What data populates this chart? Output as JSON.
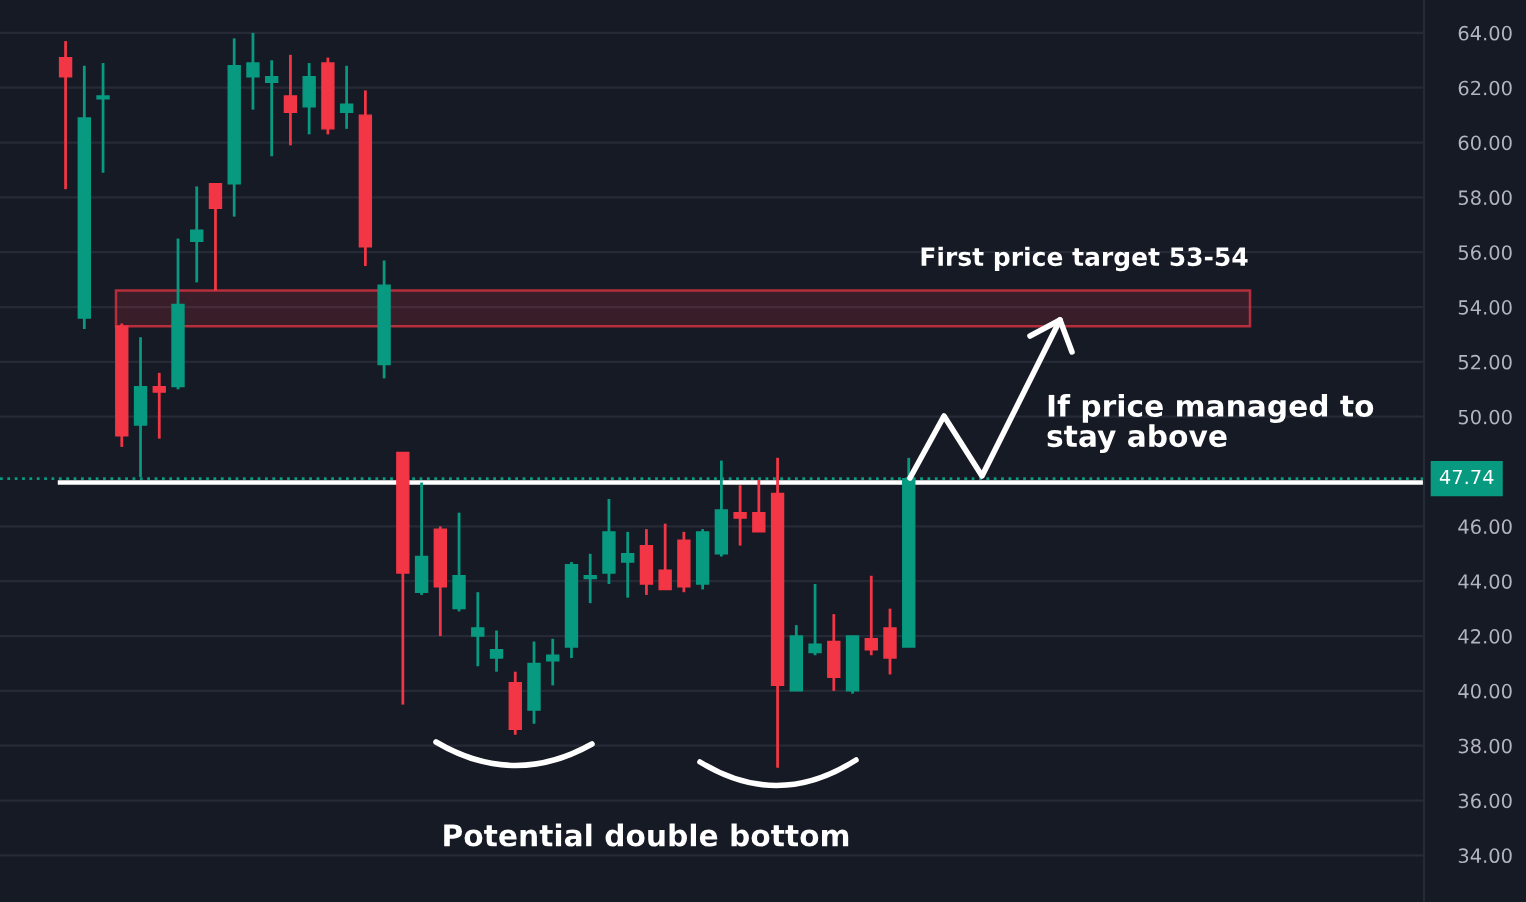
{
  "chart_data": {
    "type": "candlestick",
    "categories": [
      null,
      null,
      null,
      null,
      null,
      null,
      null,
      null,
      null,
      null,
      null,
      null,
      null,
      null,
      null,
      null,
      null,
      null,
      null,
      null,
      null,
      null,
      null,
      null,
      null,
      null,
      null,
      null,
      null,
      null,
      null,
      null,
      null,
      null,
      null,
      null,
      null,
      null,
      null,
      null,
      null,
      null,
      null,
      null,
      null,
      null,
      null,
      null,
      null,
      null,
      null,
      null,
      null,
      null,
      null,
      null,
      null,
      null,
      null,
      null,
      null,
      null,
      null,
      null,
      null,
      null,
      null,
      null,
      null,
      null,
      null,
      null,
      null,
      null,
      null,
      null
    ],
    "ohlc": [
      null,
      null,
      null,
      [
        63.1,
        63.7,
        58.3,
        62.4
      ],
      [
        53.6,
        62.8,
        53.2,
        60.9
      ],
      [
        61.6,
        62.9,
        58.9,
        61.7
      ],
      [
        53.3,
        53.4,
        48.9,
        49.3
      ],
      [
        49.7,
        52.9,
        47.8,
        51.1
      ],
      [
        51.1,
        51.6,
        49.2,
        50.9
      ],
      [
        51.1,
        56.5,
        51.0,
        54.1
      ],
      [
        56.4,
        58.4,
        54.9,
        56.8
      ],
      [
        58.5,
        58.5,
        54.6,
        57.6
      ],
      [
        58.5,
        63.8,
        57.3,
        62.8
      ],
      [
        62.4,
        64.0,
        61.2,
        62.9
      ],
      [
        62.2,
        63.0,
        59.5,
        62.4
      ],
      [
        61.7,
        63.2,
        59.9,
        61.1
      ],
      [
        61.3,
        62.9,
        60.3,
        62.4
      ],
      [
        62.9,
        63.1,
        60.3,
        60.5
      ],
      [
        61.1,
        62.8,
        60.5,
        61.4
      ],
      [
        61.0,
        61.9,
        55.5,
        56.2
      ],
      [
        51.9,
        55.7,
        51.4,
        54.8
      ],
      [
        48.7,
        48.7,
        39.5,
        44.3
      ],
      [
        43.6,
        47.6,
        43.5,
        44.9
      ],
      [
        45.9,
        46.0,
        42.0,
        43.8
      ],
      [
        43.0,
        46.5,
        42.9,
        44.2
      ],
      [
        42.0,
        43.6,
        40.9,
        42.3
      ],
      [
        41.2,
        42.2,
        40.7,
        41.5
      ],
      [
        40.3,
        40.7,
        38.4,
        38.6
      ],
      [
        39.3,
        41.8,
        38.8,
        41.0
      ],
      [
        41.1,
        41.9,
        40.2,
        41.3
      ],
      [
        41.6,
        44.7,
        41.2,
        44.6
      ],
      [
        44.1,
        45.0,
        43.2,
        44.2
      ],
      [
        44.3,
        47.0,
        43.9,
        45.8
      ],
      [
        44.7,
        45.8,
        43.4,
        45.0
      ],
      [
        45.3,
        45.9,
        43.5,
        43.9
      ],
      [
        44.4,
        46.1,
        43.7,
        43.7
      ],
      [
        45.5,
        45.8,
        43.6,
        43.8
      ],
      [
        43.9,
        45.9,
        43.7,
        45.8
      ],
      [
        45.0,
        48.4,
        44.9,
        46.6
      ],
      [
        46.5,
        47.5,
        45.3,
        46.3
      ],
      [
        46.5,
        47.7,
        45.8,
        45.8
      ],
      [
        47.2,
        48.5,
        37.2,
        40.2
      ],
      [
        40.0,
        42.4,
        40.0,
        42.0
      ],
      [
        41.4,
        43.9,
        41.3,
        41.7
      ],
      [
        41.8,
        42.8,
        40.0,
        40.5
      ],
      [
        40.0,
        42.0,
        39.9,
        42.0
      ],
      [
        41.9,
        44.2,
        41.3,
        41.5
      ],
      [
        42.3,
        43.0,
        40.6,
        41.2
      ],
      [
        41.6,
        48.5,
        41.6,
        47.74
      ],
      null,
      null,
      null,
      null,
      null,
      null,
      null,
      null,
      null,
      null,
      null,
      null,
      null,
      null,
      null,
      null,
      null,
      null,
      null,
      null,
      null,
      null,
      null,
      null,
      null,
      null,
      null
    ],
    "colors": [
      null,
      null,
      null,
      "#f23645",
      "#089981",
      "#089981",
      "#f23645",
      "#089981",
      "#f23645",
      "#089981",
      "#089981",
      "#f23645",
      "#089981",
      "#089981",
      "#089981",
      "#f23645",
      "#089981",
      "#f23645",
      "#089981",
      "#f23645",
      "#089981",
      "#f23645",
      "#089981",
      "#f23645",
      "#089981",
      "#089981",
      "#089981",
      "#f23645",
      "#089981",
      "#089981",
      "#089981",
      "#089981",
      "#089981",
      "#089981",
      "#f23645",
      "#f23645",
      "#f23645",
      "#089981",
      "#089981",
      "#f23645",
      "#f23645",
      "#f23645",
      "#089981",
      "#089981",
      "#f23645",
      "#089981",
      "#f23645",
      "#f23645",
      "#089981",
      null,
      null,
      null,
      null,
      null,
      null,
      null,
      null,
      null,
      null,
      null,
      null,
      null,
      null,
      null,
      null,
      null,
      null,
      null,
      null,
      null,
      null,
      null,
      null,
      null,
      null,
      null
    ],
    "ylim": [
      32.3,
      65.2
    ],
    "yticks": [
      {
        "value": 34,
        "label": "34.00"
      },
      {
        "value": 36,
        "label": "36.00"
      },
      {
        "value": 38,
        "label": "38.00"
      },
      {
        "value": 40,
        "label": "40.00"
      },
      {
        "value": 42,
        "label": "42.00"
      },
      {
        "value": 44,
        "label": "44.00"
      },
      {
        "value": 46,
        "label": "46.00"
      },
      {
        "value": 50,
        "label": "50.00"
      },
      {
        "value": 52,
        "label": "52.00"
      },
      {
        "value": 54,
        "label": "54.00"
      },
      {
        "value": 56,
        "label": "56.00"
      },
      {
        "value": 58,
        "label": "58.00"
      },
      {
        "value": 60,
        "label": "60.00"
      },
      {
        "value": 62,
        "label": "62.00"
      },
      {
        "value": 64,
        "label": "64.00"
      }
    ],
    "tick_labels": "y",
    "grid": "y",
    "ref_lines": [
      {
        "axis": "y",
        "value": 47.6,
        "label": null,
        "color": "#ffffff",
        "line_style": "solid"
      },
      {
        "axis": "y",
        "value": 47.74,
        "label": "47.74",
        "color": "#089981",
        "line_style": "dotted"
      }
    ],
    "bands": [
      {
        "axis": "y",
        "from": 53.3,
        "to": 54.6,
        "label": "First price target 53-54",
        "color": "#f23645"
      }
    ],
    "annotations": [
      "If price managed to\nstay above",
      "Potential double bottom"
    ]
  }
}
